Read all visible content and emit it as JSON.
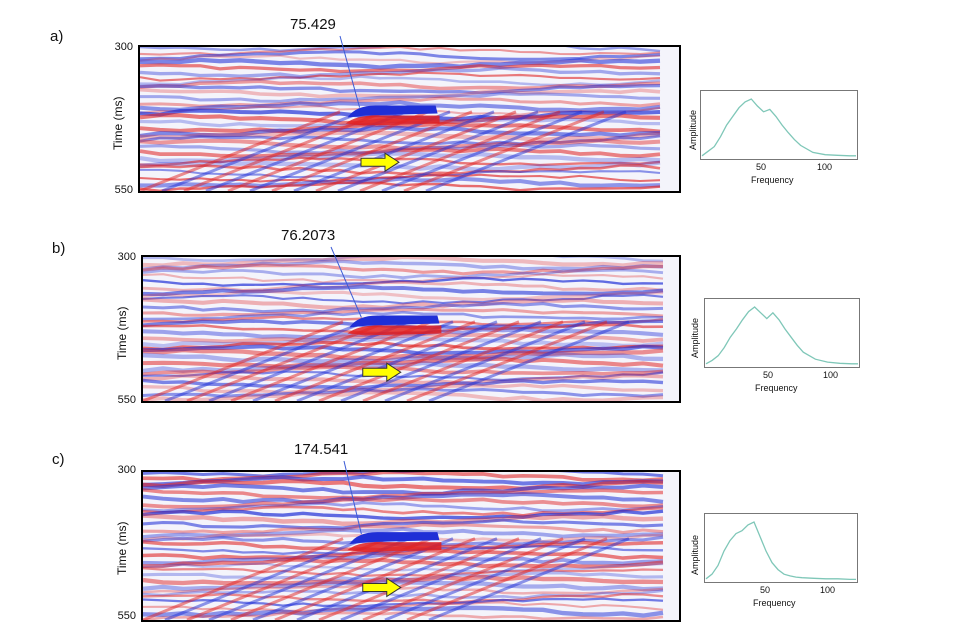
{
  "chart_data": [
    {
      "type": "line",
      "panel_label": "a)",
      "seismic_section": {
        "ylabel": "Time (ms)",
        "yticks": [
          "300",
          "550"
        ],
        "ylim": [
          300,
          550
        ],
        "annotation_value": "75.429",
        "arrow_color": "#ffff00",
        "colormap": [
          "#1f2fd6",
          "#ffffff",
          "#e02020"
        ]
      },
      "spectrum": {
        "xlabel": "Frequency",
        "ylabel": "Amplitude",
        "xticks": [
          "50",
          "100"
        ],
        "xlim": [
          0,
          125
        ],
        "line_color": "#7fc7b8",
        "x": [
          0,
          5,
          10,
          15,
          20,
          25,
          30,
          35,
          40,
          45,
          50,
          55,
          60,
          65,
          70,
          75,
          80,
          90,
          100,
          110,
          120,
          125
        ],
        "y": [
          0.02,
          0.1,
          0.18,
          0.35,
          0.55,
          0.7,
          0.85,
          0.95,
          1.0,
          0.88,
          0.78,
          0.82,
          0.7,
          0.55,
          0.42,
          0.3,
          0.2,
          0.08,
          0.04,
          0.03,
          0.02,
          0.02
        ]
      }
    },
    {
      "type": "line",
      "panel_label": "b)",
      "seismic_section": {
        "ylabel": "Time (ms)",
        "yticks": [
          "300",
          "550"
        ],
        "ylim": [
          300,
          550
        ],
        "annotation_value": "76.2073",
        "arrow_color": "#ffff00",
        "colormap": [
          "#1f2fd6",
          "#ffffff",
          "#e02020"
        ]
      },
      "spectrum": {
        "xlabel": "Frequency",
        "ylabel": "Amplitude",
        "xticks": [
          "50",
          "100"
        ],
        "xlim": [
          0,
          125
        ],
        "line_color": "#7fc7b8",
        "x": [
          0,
          5,
          10,
          15,
          20,
          25,
          30,
          35,
          40,
          45,
          50,
          55,
          60,
          65,
          70,
          75,
          80,
          90,
          100,
          110,
          120,
          125
        ],
        "y": [
          0.02,
          0.08,
          0.16,
          0.3,
          0.48,
          0.62,
          0.78,
          0.92,
          1.0,
          0.9,
          0.8,
          0.9,
          0.78,
          0.62,
          0.48,
          0.34,
          0.22,
          0.1,
          0.05,
          0.03,
          0.02,
          0.02
        ]
      }
    },
    {
      "type": "line",
      "panel_label": "c)",
      "seismic_section": {
        "ylabel": "Time (ms)",
        "yticks": [
          "300",
          "550"
        ],
        "ylim": [
          300,
          550
        ],
        "annotation_value": "174.541",
        "arrow_color": "#ffff00",
        "colormap": [
          "#1f2fd6",
          "#ffffff",
          "#e02020"
        ]
      },
      "spectrum": {
        "xlabel": "Frequency",
        "ylabel": "Amplitude",
        "xticks": [
          "50",
          "100"
        ],
        "xlim": [
          0,
          125
        ],
        "line_color": "#7fc7b8",
        "x": [
          0,
          5,
          10,
          15,
          20,
          25,
          30,
          35,
          40,
          45,
          50,
          55,
          60,
          65,
          70,
          75,
          80,
          90,
          100,
          110,
          120,
          125
        ],
        "y": [
          0.02,
          0.1,
          0.25,
          0.5,
          0.68,
          0.8,
          0.85,
          0.95,
          1.0,
          0.75,
          0.5,
          0.3,
          0.18,
          0.1,
          0.07,
          0.05,
          0.04,
          0.03,
          0.02,
          0.02,
          0.01,
          0.01
        ]
      }
    }
  ]
}
